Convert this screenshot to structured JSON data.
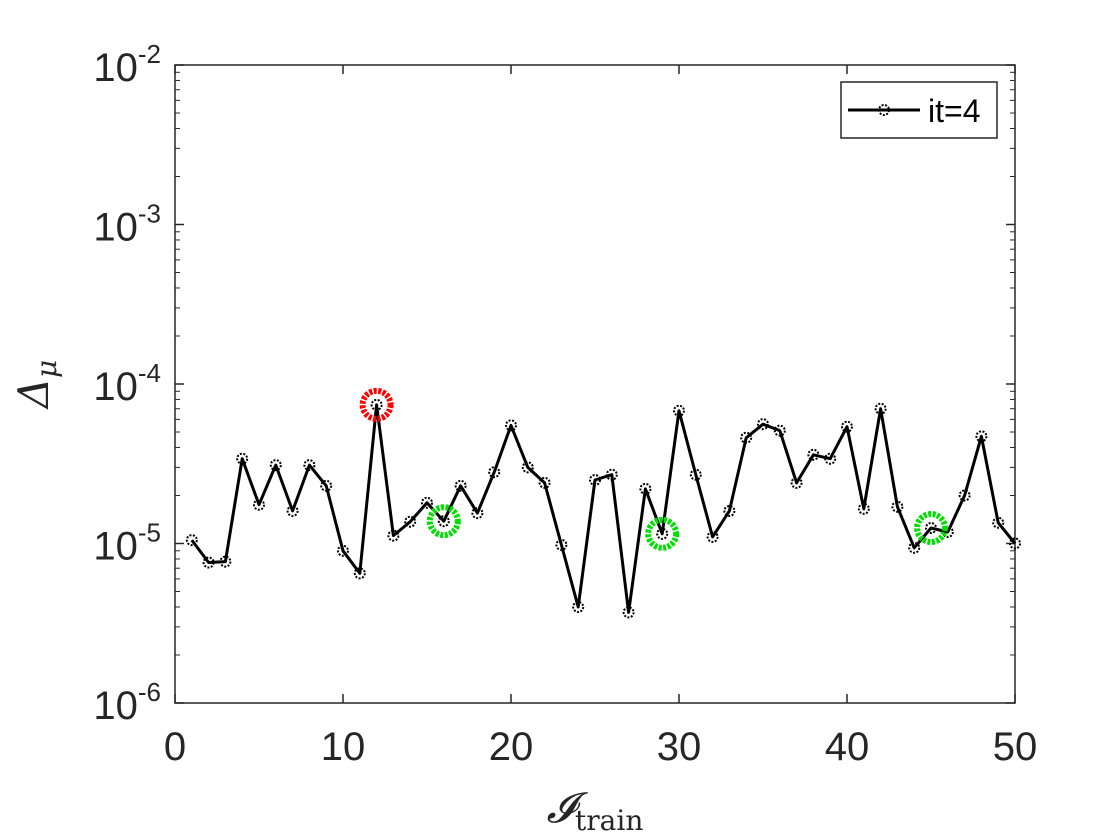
{
  "chart_data": {
    "type": "line",
    "title": "",
    "xlabel": {
      "base": "𝓘",
      "sub": "train"
    },
    "ylabel": {
      "base": "Δ",
      "sub": "μ"
    },
    "xlim": [
      0,
      50
    ],
    "ylim": [
      1e-06,
      0.01
    ],
    "yscale": "log",
    "grid": false,
    "legend_position": "top-right",
    "x_ticks": [
      0,
      10,
      20,
      30,
      40,
      50
    ],
    "y_ticks": [
      {
        "base": "10",
        "exp": "-6",
        "value": 1e-06
      },
      {
        "base": "10",
        "exp": "-5",
        "value": 1e-05
      },
      {
        "base": "10",
        "exp": "-4",
        "value": 0.0001
      },
      {
        "base": "10",
        "exp": "-3",
        "value": 0.001
      },
      {
        "base": "10",
        "exp": "-2",
        "value": 0.01
      }
    ],
    "series": [
      {
        "name": "it=4",
        "color": "#000000",
        "marker": "circle",
        "x": [
          1,
          2,
          3,
          4,
          5,
          6,
          7,
          8,
          9,
          10,
          11,
          12,
          13,
          14,
          15,
          16,
          17,
          18,
          19,
          20,
          21,
          22,
          23,
          24,
          25,
          26,
          27,
          28,
          29,
          30,
          31,
          32,
          33,
          34,
          35,
          36,
          37,
          38,
          39,
          40,
          41,
          42,
          43,
          44,
          45,
          46,
          47,
          48,
          49,
          50
        ],
        "y": [
          1.05e-05,
          7.6e-06,
          7.7e-06,
          3.4e-05,
          1.75e-05,
          3.1e-05,
          1.6e-05,
          3.1e-05,
          2.3e-05,
          9e-06,
          6.5e-06,
          7.4e-05,
          1.12e-05,
          1.37e-05,
          1.8e-05,
          1.38e-05,
          2.3e-05,
          1.55e-05,
          2.8e-05,
          5.5e-05,
          3e-05,
          2.4e-05,
          9.8e-06,
          4e-06,
          2.5e-05,
          2.7e-05,
          3.7e-06,
          2.2e-05,
          1.15e-05,
          6.8e-05,
          2.7e-05,
          1.1e-05,
          1.6e-05,
          4.6e-05,
          5.6e-05,
          5.1e-05,
          2.4e-05,
          3.6e-05,
          3.4e-05,
          5.4e-05,
          1.65e-05,
          7e-05,
          1.7e-05,
          9.4e-06,
          1.25e-05,
          1.18e-05,
          2e-05,
          4.7e-05,
          1.35e-05,
          1e-05
        ]
      }
    ],
    "highlights": [
      {
        "x": 12,
        "y": 7.4e-05,
        "color": "#ff0000"
      },
      {
        "x": 16,
        "y": 1.38e-05,
        "color": "#00e000"
      },
      {
        "x": 29,
        "y": 1.15e-05,
        "color": "#00e000"
      },
      {
        "x": 45,
        "y": 1.25e-05,
        "color": "#00e000"
      }
    ]
  }
}
